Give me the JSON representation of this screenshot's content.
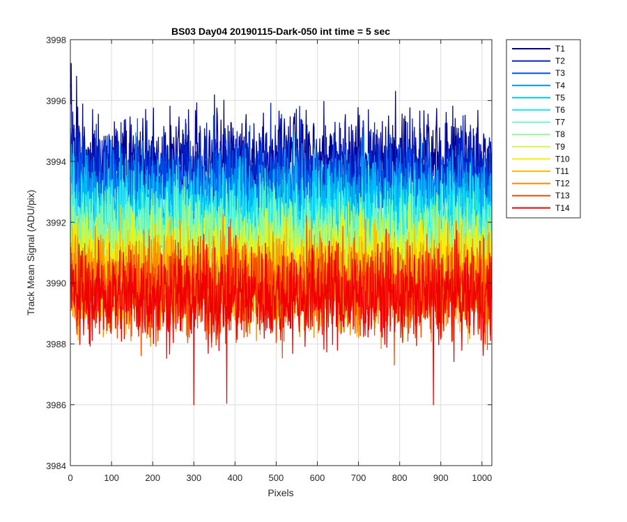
{
  "chart_data": {
    "type": "line",
    "title": "BS03 Day04 20190115-Dark-050 int time = 5 sec",
    "xlabel": "Pixels",
    "ylabel": "Track Mean Signal (ADU/pix)",
    "xlim": [
      0,
      1024
    ],
    "ylim": [
      3984,
      3998
    ],
    "xticks": [
      0,
      100,
      200,
      300,
      400,
      500,
      600,
      700,
      800,
      900,
      1000
    ],
    "yticks": [
      3984,
      3986,
      3988,
      3990,
      3992,
      3994,
      3996,
      3998
    ],
    "grid": true,
    "legend_location": "outside-top-right",
    "n_points": 1024,
    "noise_amplitude_adu": 0.8,
    "series": [
      {
        "name": "T1",
        "color": "#00008f",
        "mean": 3994.0
      },
      {
        "name": "T2",
        "color": "#0020c8",
        "mean": 3993.6
      },
      {
        "name": "T3",
        "color": "#0050e8",
        "mean": 3993.1
      },
      {
        "name": "T4",
        "color": "#0090f0",
        "mean": 3992.7
      },
      {
        "name": "T5",
        "color": "#00c0f8",
        "mean": 3992.4
      },
      {
        "name": "T6",
        "color": "#20e8f0",
        "mean": 3992.0
      },
      {
        "name": "T7",
        "color": "#70f8c8",
        "mean": 3991.6
      },
      {
        "name": "T8",
        "color": "#98f890",
        "mean": 3991.2
      },
      {
        "name": "T9",
        "color": "#d0f840",
        "mean": 3990.8
      },
      {
        "name": "T10",
        "color": "#f8f000",
        "mean": 3990.5
      },
      {
        "name": "T11",
        "color": "#f8c000",
        "mean": 3990.2
      },
      {
        "name": "T12",
        "color": "#f88800",
        "mean": 3990.0
      },
      {
        "name": "T13",
        "color": "#f84800",
        "mean": 3989.8
      },
      {
        "name": "T14",
        "color": "#f00000",
        "mean": 3989.6
      }
    ],
    "notable_points": [
      {
        "series": "T1",
        "x": 15,
        "y": 3996.8
      },
      {
        "series": "T1",
        "x": 790,
        "y": 3996.3
      },
      {
        "series": "T14",
        "x": 300,
        "y": 3986.0
      },
      {
        "series": "T14",
        "x": 380,
        "y": 3986.05
      },
      {
        "series": "T14",
        "x": 882,
        "y": 3986.0
      }
    ]
  }
}
